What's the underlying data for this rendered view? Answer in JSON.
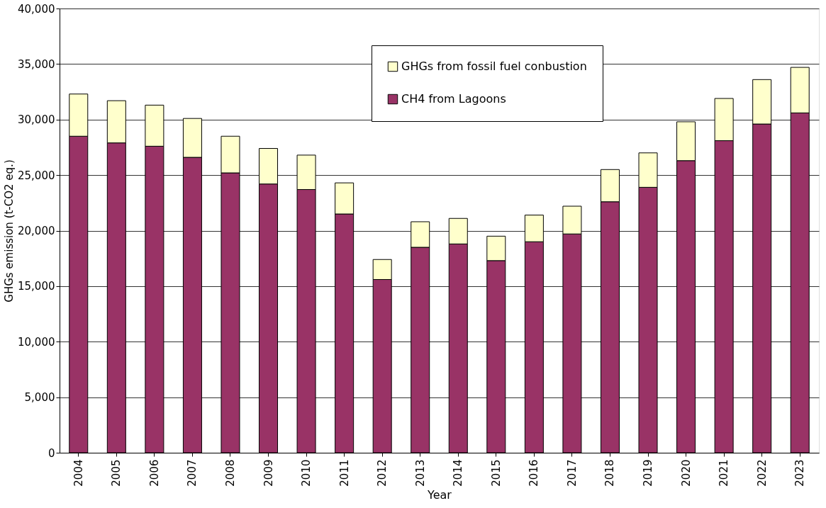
{
  "chart_data": {
    "type": "bar",
    "stacked": true,
    "xlabel": "Year",
    "ylabel": "GHGs emission (t-CO2 eq.)",
    "categories": [
      "2004",
      "2005",
      "2006",
      "2007",
      "2008",
      "2009",
      "2010",
      "2011",
      "2012",
      "2013",
      "2014",
      "2015",
      "2016",
      "2017",
      "2018",
      "2019",
      "2020",
      "2021",
      "2022",
      "2023"
    ],
    "series": [
      {
        "name": "CH4 from Lagoons",
        "color": "#993366",
        "values": [
          28500,
          27900,
          27600,
          26600,
          25200,
          24200,
          23700,
          21500,
          15600,
          18500,
          18800,
          17300,
          19000,
          19700,
          22600,
          23900,
          26300,
          28100,
          29600,
          30600
        ]
      },
      {
        "name": "GHGs from fossil fuel conbustion",
        "color": "#ffffcc",
        "values": [
          3800,
          3800,
          3700,
          3500,
          3300,
          3200,
          3100,
          2800,
          1800,
          2300,
          2300,
          2200,
          2400,
          2500,
          2900,
          3100,
          3500,
          3800,
          4000,
          4100
        ]
      }
    ],
    "ylim": [
      0,
      40000
    ],
    "yticks": [
      0,
      {
        "value": 5000,
        "label": "5,000"
      },
      {
        "value": 10000,
        "label": "10,000"
      },
      {
        "value": 15000,
        "label": "15,000"
      },
      {
        "value": 20000,
        "label": "20,000"
      },
      {
        "value": 25000,
        "label": "25,000"
      },
      {
        "value": 30000,
        "label": "30,000"
      },
      {
        "value": 35000,
        "label": "35,000"
      },
      {
        "value": 40000,
        "label": "40,000"
      }
    ],
    "grid": "y",
    "legend": "top right"
  }
}
